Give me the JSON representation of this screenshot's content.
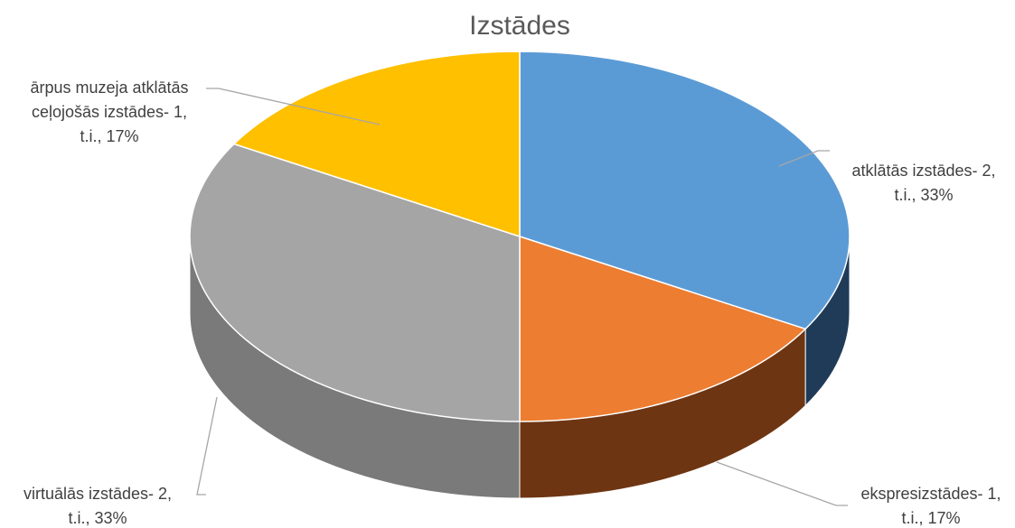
{
  "chart_data": {
    "type": "pie3d",
    "title": "Izstādes",
    "categories": [
      "atklātās izstādes",
      "ekspresizstādes",
      "virtuālās izstādes",
      "ārpus muzeja atklātās ceļojošās izstādes"
    ],
    "values": [
      2,
      1,
      2,
      1
    ],
    "value_labels": [
      [
        "atklātās izstādes- 2,",
        "t.i., 33%"
      ],
      [
        "ekspresizstādes- 1,",
        "t.i., 17%"
      ],
      [
        "virtuālās izstādes- 2,",
        "t.i., 33%"
      ],
      [
        "ārpus muzeja atklātās",
        "ceļojošās izstādes- 1,",
        "t.i., 17%"
      ]
    ],
    "colors": [
      "#5b9bd5",
      "#ed7d31",
      "#a5a5a5",
      "#ffc000"
    ],
    "side_colors": [
      "#1f3b57",
      "#6e3513",
      "#7a7a7a",
      "#8a6a00"
    ]
  }
}
